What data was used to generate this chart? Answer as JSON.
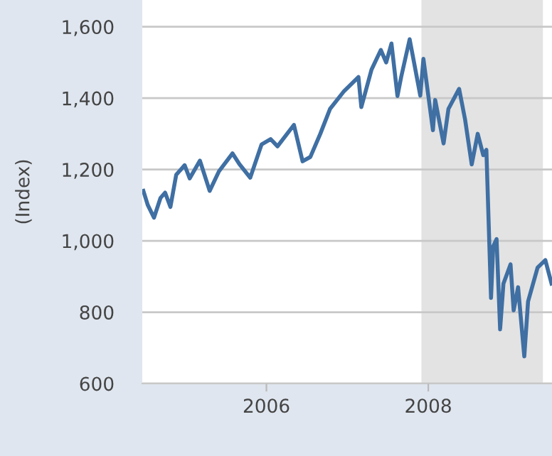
{
  "chart_data": {
    "type": "line",
    "ylabel": "(Index)",
    "x": [
      "2004-06-25",
      "2004-07-15",
      "2004-08-12",
      "2004-09-10",
      "2004-10-01",
      "2004-10-25",
      "2004-11-20",
      "2004-12-28",
      "2005-01-20",
      "2005-03-07",
      "2005-04-20",
      "2005-06-01",
      "2005-08-01",
      "2005-09-01",
      "2005-10-20",
      "2005-12-10",
      "2006-01-20",
      "2006-02-20",
      "2006-05-05",
      "2006-06-13",
      "2006-07-18",
      "2006-09-01",
      "2006-10-15",
      "2006-12-15",
      "2007-02-20",
      "2007-03-05",
      "2007-04-20",
      "2007-06-01",
      "2007-06-25",
      "2007-07-19",
      "2007-08-15",
      "2007-09-01",
      "2007-10-09",
      "2007-11-26",
      "2007-12-10",
      "2008-01-22",
      "2008-02-01",
      "2008-03-10",
      "2008-04-01",
      "2008-05-19",
      "2008-06-15",
      "2008-07-15",
      "2008-08-11",
      "2008-09-05",
      "2008-09-19",
      "2008-10-10",
      "2008-10-20",
      "2008-11-04",
      "2008-11-20",
      "2008-12-05",
      "2009-01-06",
      "2009-01-20",
      "2009-02-09",
      "2009-03-09",
      "2009-03-26",
      "2009-05-08",
      "2009-06-12",
      "2009-07-10"
    ],
    "series": [
      {
        "color": "#3f6fa3",
        "values": [
          1140,
          1100,
          1065,
          1120,
          1135,
          1095,
          1185,
          1212,
          1175,
          1225,
          1140,
          1195,
          1245,
          1215,
          1177,
          1270,
          1285,
          1265,
          1325,
          1223,
          1235,
          1300,
          1370,
          1418,
          1459,
          1375,
          1480,
          1535,
          1500,
          1553,
          1406,
          1460,
          1565,
          1407,
          1510,
          1310,
          1395,
          1273,
          1370,
          1426,
          1340,
          1214,
          1300,
          1240,
          1255,
          840,
          985,
          1005,
          752,
          880,
          934,
          805,
          870,
          676,
          830,
          925,
          946,
          880
        ]
      }
    ],
    "xlim": [
      "2004-06-20",
      "2009-07-12"
    ],
    "xticks": [
      {
        "value": "2006-01-01",
        "label": "2006"
      },
      {
        "value": "2008-01-01",
        "label": "2008"
      }
    ],
    "ylim": [
      600,
      1675
    ],
    "yticks": [
      {
        "value": 600,
        "label": "600"
      },
      {
        "value": 800,
        "label": "800"
      },
      {
        "value": 1000,
        "label": "1,000"
      },
      {
        "value": 1200,
        "label": "1,200"
      },
      {
        "value": 1400,
        "label": "1,400"
      },
      {
        "value": 1600,
        "label": "1,600"
      }
    ],
    "bands": [
      {
        "axis": "x",
        "from": "2007-12-01",
        "to": "2009-06-01",
        "color": "#e3e3e3"
      }
    ],
    "grid": "y"
  }
}
